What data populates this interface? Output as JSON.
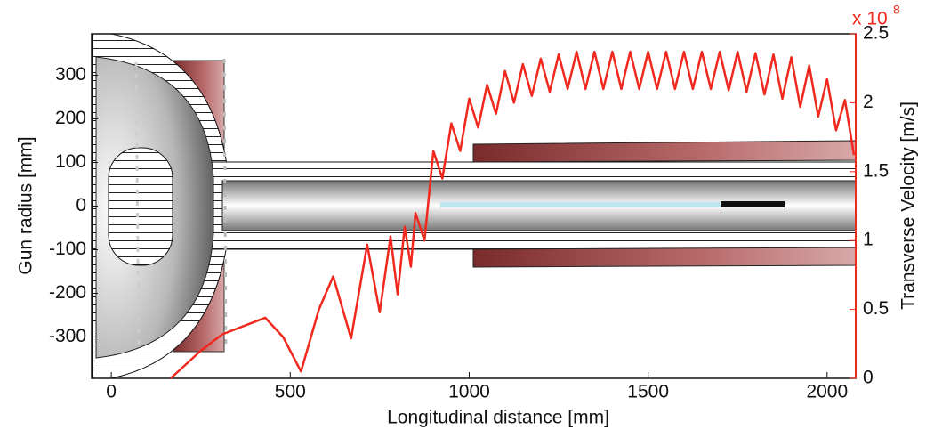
{
  "chart_data": {
    "type": "line",
    "xlabel": "Longitudinal distance [mm]",
    "ylabel": "Gun radius [mm]",
    "y2label": "Transverse Velocity [m/s]",
    "y2_multiplier": {
      "base": "x 10",
      "exponent": "8"
    },
    "xlim": [
      -55,
      2080
    ],
    "xticks": [
      0,
      500,
      1000,
      1500,
      2000
    ],
    "ylim": [
      -395,
      395
    ],
    "yticks": [
      -300,
      -200,
      -100,
      0,
      100,
      200,
      300
    ],
    "y2lim": [
      0,
      2.5
    ],
    "y2ticks": [
      0,
      0.5,
      1,
      1.5,
      2,
      2.5
    ],
    "y2color": "#f0281e",
    "series": [
      {
        "color": "#f0281e",
        "axis": "y2",
        "x": [
          166,
          250,
          310,
          430,
          480,
          530,
          580,
          620,
          670,
          715,
          750,
          780,
          800,
          820,
          837,
          850,
          875,
          900,
          925,
          950,
          975,
          1000,
          1025,
          1050,
          1075,
          1100,
          1125,
          1150,
          1175,
          1200,
          1225,
          1250,
          1275,
          1300,
          1325,
          1350,
          1375,
          1400,
          1425,
          1450,
          1475,
          1500,
          1525,
          1550,
          1575,
          1600,
          1625,
          1650,
          1675,
          1700,
          1725,
          1750,
          1775,
          1800,
          1825,
          1850,
          1875,
          1900,
          1925,
          1950,
          1975,
          2000,
          2025,
          2050,
          2075
        ],
        "values": [
          0,
          0.2,
          0.32,
          0.44,
          0.3,
          0.05,
          0.5,
          0.74,
          0.29,
          0.97,
          0.48,
          1.03,
          0.61,
          1.1,
          0.81,
          1.2,
          1.0,
          1.65,
          1.45,
          1.85,
          1.65,
          2.03,
          1.82,
          2.13,
          1.92,
          2.23,
          2.0,
          2.28,
          2.05,
          2.32,
          2.08,
          2.35,
          2.1,
          2.37,
          2.1,
          2.37,
          2.1,
          2.37,
          2.1,
          2.37,
          2.1,
          2.37,
          2.1,
          2.37,
          2.1,
          2.37,
          2.1,
          2.37,
          2.1,
          2.37,
          2.09,
          2.37,
          2.08,
          2.36,
          2.06,
          2.35,
          2.03,
          2.33,
          1.97,
          2.27,
          1.9,
          2.17,
          1.8,
          2.02,
          1.62
        ]
      }
    ]
  }
}
